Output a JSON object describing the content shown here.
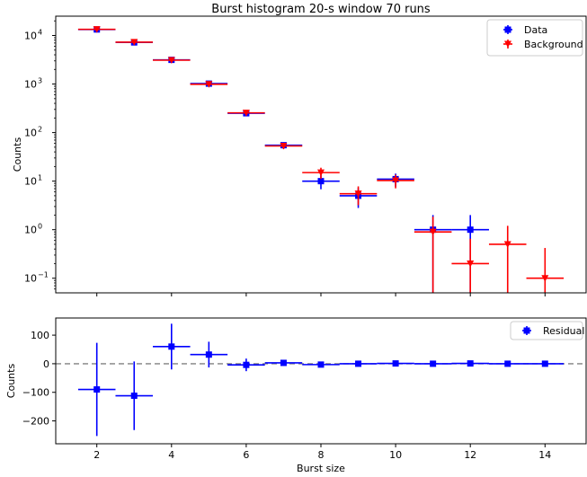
{
  "chart_data": [
    {
      "type": "scatter",
      "title": "Burst histogram 20-s window 70 runs",
      "xlabel": "",
      "ylabel": "Counts",
      "yscale": "log",
      "xlim": [
        0.9,
        15.1
      ],
      "ylim": [
        0.05,
        25000
      ],
      "grid": false,
      "legend_position": "top-right",
      "y_ticks": [
        {
          "value": 0.1,
          "label": "10"
        },
        {
          "value": 1,
          "label": "10"
        },
        {
          "value": 10,
          "label": "10"
        },
        {
          "value": 100,
          "label": "10"
        },
        {
          "value": 1000,
          "label": "10"
        },
        {
          "value": 10000,
          "label": "10"
        }
      ],
      "y_tick_exponents": [
        "−1",
        "0",
        "1",
        "2",
        "3",
        "4"
      ],
      "series": [
        {
          "name": "Data",
          "color": "#0000ff",
          "marker": "square",
          "x": [
            2,
            3,
            4,
            5,
            6,
            7,
            8,
            9,
            10,
            11,
            12
          ],
          "y": [
            13300,
            7200,
            3150,
            1020,
            250,
            55,
            10,
            5,
            11,
            1,
            1
          ],
          "yerr": [
            115,
            85,
            56,
            32,
            16,
            7.4,
            3.2,
            2.2,
            3.3,
            1,
            1
          ]
        },
        {
          "name": "Background",
          "color": "#ff0000",
          "marker": "triangle-down",
          "x": [
            2,
            3,
            4,
            5,
            6,
            7,
            8,
            9,
            10,
            11,
            12,
            13,
            14
          ],
          "y": [
            13400,
            7300,
            3100,
            990,
            255,
            53,
            15,
            5.5,
            10.3,
            0.9,
            0.2,
            0.5,
            0.1
          ],
          "yerr": [
            116,
            85,
            56,
            31,
            16,
            7.3,
            3.9,
            2.3,
            3.2,
            0.95,
            0.45,
            0.7,
            0.32
          ]
        }
      ]
    },
    {
      "type": "scatter",
      "title": "",
      "xlabel": "Burst size",
      "ylabel": "Counts",
      "xlim": [
        0.9,
        15.1
      ],
      "ylim": [
        -280,
        160
      ],
      "x_ticks": [
        2,
        4,
        6,
        8,
        10,
        12,
        14
      ],
      "y_ticks": [
        100,
        0,
        -100,
        -200
      ],
      "reference_line": 0,
      "grid": false,
      "legend_position": "top-right",
      "series": [
        {
          "name": "Residual",
          "color": "#0000ff",
          "marker": "square",
          "x": [
            2,
            3,
            4,
            5,
            6,
            7,
            8,
            9,
            10,
            11,
            12,
            13,
            14
          ],
          "y": [
            -90,
            -112,
            60,
            32,
            -4,
            3,
            -3,
            0,
            1,
            0,
            1,
            0,
            0
          ],
          "yerr": [
            163,
            120,
            80,
            45,
            22,
            10,
            5,
            3.2,
            4.6,
            1.4,
            1.1,
            0.7,
            0.3
          ]
        }
      ]
    }
  ]
}
